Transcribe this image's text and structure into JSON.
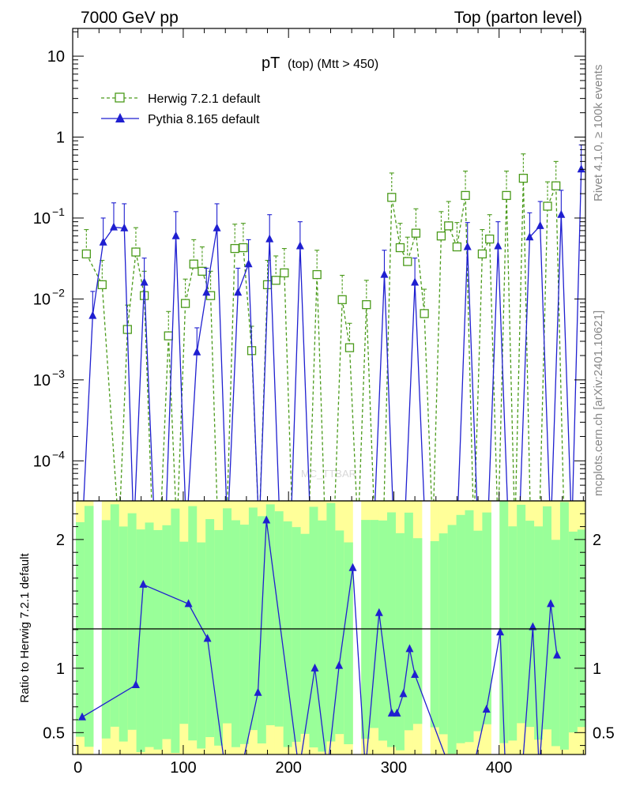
{
  "header": {
    "energy": "7000 GeV pp",
    "process": "Top (parton level)"
  },
  "side_labels": {
    "rivet": "Rivet 4.1.0, ≥ 100k events",
    "mcplots": "mcplots.cern.ch [arXiv:2401.10621]"
  },
  "watermark": "MC_TTBAR",
  "chart_data": {
    "type": "line",
    "title": "pT (top) (Mtt > 450)",
    "title_main": "pT",
    "title_sub": "(top) (Mtt > 450)",
    "xlabel": "",
    "ylabel_main": "",
    "ylabel_ratio": "Ratio to Herwig 7.2.1 default",
    "xlim": [
      -5,
      482
    ],
    "ylim_main": [
      3.2e-05,
      22
    ],
    "yscale_main": "log",
    "ylim_ratio": [
      0.33,
      2.3
    ],
    "x_ticks": [
      "0",
      "100",
      "200",
      "300",
      "400"
    ],
    "x_tick_values": [
      0,
      100,
      200,
      300,
      400
    ],
    "y_ticks_main": [
      {
        "value": 0.0001,
        "base": "10",
        "exp": "−4"
      },
      {
        "value": 0.001,
        "base": "10",
        "exp": "−3"
      },
      {
        "value": 0.01,
        "base": "10",
        "exp": "−2"
      },
      {
        "value": 0.1,
        "base": "10",
        "exp": "−1"
      },
      {
        "value": 1,
        "base": "1",
        "exp": ""
      },
      {
        "value": 10,
        "base": "10",
        "exp": ""
      }
    ],
    "y_ticks_ratio": [
      "0.5",
      "1",
      "2"
    ],
    "y_tick_values_ratio": [
      0.5,
      1,
      2
    ],
    "legend": [
      {
        "name": "Herwig 7.2.1 default",
        "color": "#4a9a1a",
        "marker": "open-square",
        "style": "dashed"
      },
      {
        "name": "Pythia 8.165 default",
        "color": "#1f1fd0",
        "marker": "filled-triangle",
        "style": "solid"
      }
    ],
    "series": [
      {
        "name": "Herwig 7.2.1 default",
        "x": [
          8,
          23,
          39,
          47,
          55,
          63,
          71,
          78,
          86,
          94,
          102,
          110,
          118,
          126,
          133,
          141,
          149,
          157,
          165,
          172,
          180,
          188,
          196,
          204,
          211,
          219,
          227,
          235,
          243,
          251,
          258,
          266,
          274,
          282,
          290,
          298,
          306,
          313,
          321,
          329,
          337,
          345,
          352,
          360,
          368,
          376,
          384,
          391,
          399,
          407,
          415,
          423,
          430,
          438,
          446,
          454,
          462,
          469,
          477
        ],
        "values": [
          0.036,
          0.015,
          0.0,
          0.0042,
          0.038,
          0.011,
          0.0,
          0.0,
          0.0035,
          0.0,
          0.0088,
          0.027,
          0.022,
          0.011,
          0.0,
          0.0,
          0.042,
          0.043,
          0.0023,
          0.0,
          0.015,
          0.017,
          0.021,
          0.0,
          0.0,
          0.0,
          0.02,
          0.0,
          0.0,
          0.0098,
          0.0025,
          0.0,
          0.0085,
          0.0,
          0.0,
          0.18,
          0.043,
          0.029,
          0.065,
          0.0066,
          0.0,
          0.06,
          0.08,
          0.044,
          0.19,
          0.0,
          0.036,
          0.055,
          0.0,
          0.19,
          0.0,
          0.31,
          0.0,
          0.0,
          0.14,
          0.25,
          0.0,
          0.0,
          0.0
        ]
      },
      {
        "name": "Pythia 8.165 default",
        "x": [
          4,
          14,
          24,
          34,
          44,
          53,
          63,
          73,
          83,
          93,
          103,
          113,
          122,
          132,
          142,
          152,
          162,
          172,
          182,
          192,
          202,
          211,
          221,
          231,
          241,
          251,
          261,
          271,
          281,
          291,
          300,
          310,
          320,
          330,
          340,
          350,
          360,
          370,
          380,
          389,
          399,
          409,
          419,
          429,
          439,
          449,
          459,
          469,
          478
        ],
        "values": [
          0.0,
          0.0062,
          0.05,
          0.077,
          0.075,
          0.0,
          0.016,
          0.0,
          0.0,
          0.06,
          0.0,
          0.0022,
          0.012,
          0.075,
          0.0,
          0.012,
          0.027,
          0.0,
          0.055,
          0.0,
          0.0,
          0.045,
          0.0,
          0.0,
          0.0,
          0.0,
          0.0,
          0.0,
          0.0,
          0.02,
          0.0,
          0.0,
          0.016,
          0.0,
          0.0,
          0.0,
          0.0,
          0.044,
          0.0,
          0.0,
          0.045,
          0.0,
          0.0,
          0.058,
          0.08,
          0.0,
          0.11,
          0.0,
          0.4
        ],
        "ratio_x": [
          4,
          55,
          62,
          105,
          123,
          140,
          155,
          171,
          179,
          210,
          225,
          237,
          248,
          261,
          273,
          286,
          298,
          303,
          309,
          315,
          320,
          354,
          375,
          388,
          401,
          406,
          417,
          422,
          432,
          438,
          449,
          455
        ],
        "ratio_values": [
          0.62,
          0.87,
          1.65,
          1.5,
          1.23,
          0.34,
          0.35,
          0.81,
          2.15,
          0.34,
          1.0,
          0.34,
          1.02,
          1.78,
          0.34,
          1.43,
          0.65,
          0.65,
          0.8,
          1.15,
          0.95,
          0.34,
          0.34,
          0.68,
          1.28,
          0.34,
          0.34,
          0.34,
          1.32,
          0.34,
          1.5,
          1.1
        ]
      }
    ]
  }
}
